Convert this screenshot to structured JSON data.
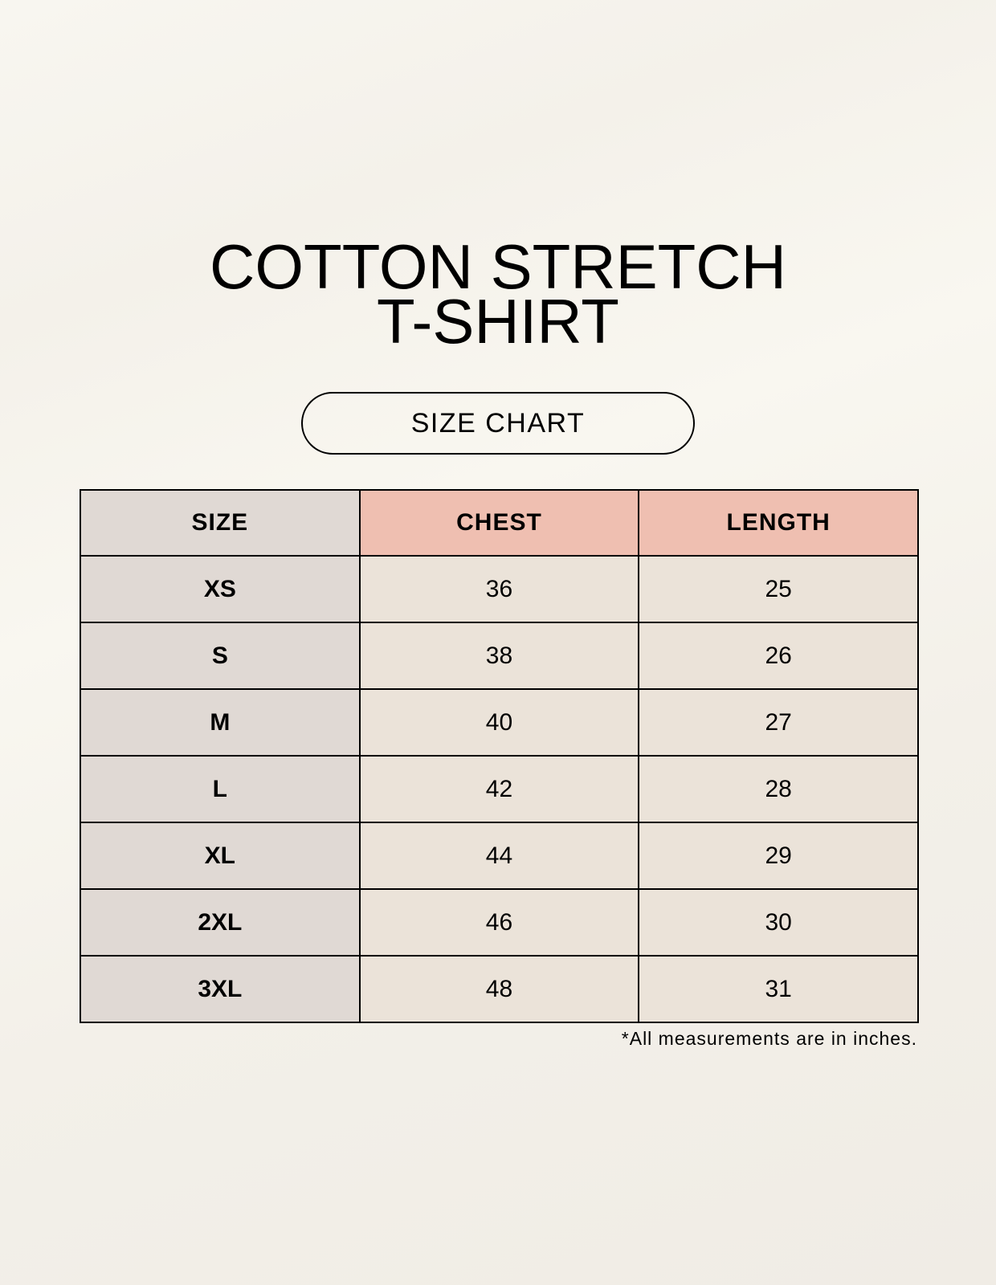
{
  "title": {
    "line1": "COTTON STRETCH",
    "line2": "T-SHIRT"
  },
  "badge": "SIZE CHART",
  "colors": {
    "size_column": "#e0d9d4",
    "header_accent": "#efbfb1",
    "cell": "#ebe3d9",
    "background": "#f8f5ef"
  },
  "table": {
    "headers": [
      "SIZE",
      "CHEST",
      "LENGTH"
    ],
    "rows": [
      [
        "XS",
        "36",
        "25"
      ],
      [
        "S",
        "38",
        "26"
      ],
      [
        "M",
        "40",
        "27"
      ],
      [
        "L",
        "42",
        "28"
      ],
      [
        "XL",
        "44",
        "29"
      ],
      [
        "2XL",
        "46",
        "30"
      ],
      [
        "3XL",
        "48",
        "31"
      ]
    ]
  },
  "footnote": "*All measurements are in inches."
}
